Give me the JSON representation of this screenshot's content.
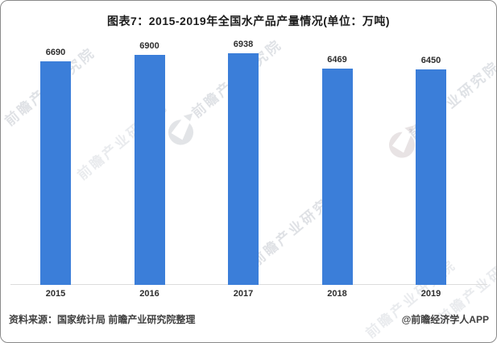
{
  "title": "图表7：2015-2019年全国水产品产量情况(单位：万吨)",
  "chart_data": {
    "type": "bar",
    "title": "图表7：2015-2019年全国水产品产量情况",
    "unit": "万吨",
    "categories": [
      "2015",
      "2016",
      "2017",
      "2018",
      "2019"
    ],
    "values": [
      6690,
      6900,
      6938,
      6469,
      6450
    ],
    "xlabel": "",
    "ylabel": "",
    "ylim": [
      0,
      7000
    ],
    "grid": false,
    "legend": false,
    "value_labels": true,
    "bar_color": "#3b7ed9"
  },
  "footer": {
    "source": "资料来源：国家统计局 前瞻产业研究院整理",
    "credit": "@前瞻经济学人APP"
  },
  "watermark": {
    "text": "前瞻产业研究院",
    "logo": "qianzhan-logo"
  },
  "colors": {
    "bar": "#3b7ed9",
    "axis_line": "#dcdcdc",
    "title_text": "#1c1c1c",
    "label_text": "#2d2d2d",
    "footer_text": "#3f3f3f",
    "watermark": "#b4bac3",
    "border": "#8a8a8a",
    "background": "#ffffff"
  }
}
